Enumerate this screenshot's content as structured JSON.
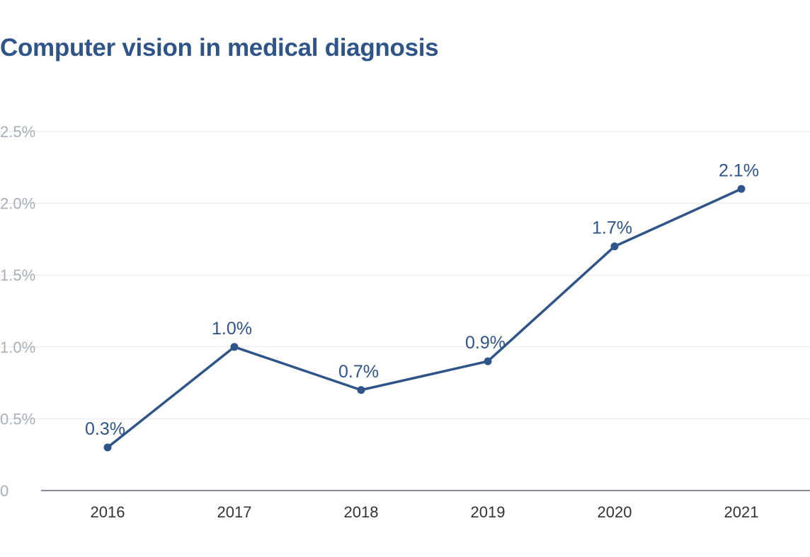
{
  "chart_data": {
    "type": "line",
    "title": "Computer vision in medical diagnosis",
    "categories": [
      "2016",
      "2017",
      "2018",
      "2019",
      "2020",
      "2021"
    ],
    "series": [
      {
        "values": [
          0.3,
          1.0,
          0.7,
          0.9,
          1.7,
          2.1
        ]
      }
    ],
    "data_labels": [
      "0.3%",
      "1.0%",
      "0.7%",
      "0.9%",
      "1.7%",
      "2.1%"
    ],
    "y_ticks": [
      0,
      0.5,
      1.0,
      1.5,
      2.0,
      2.5
    ],
    "y_tick_labels": [
      "0",
      "0.5%",
      "1.0%",
      "1.5%",
      "2.0%",
      "2.5%"
    ],
    "ylim": [
      0,
      2.5
    ],
    "grid": true,
    "xlabel": "",
    "ylabel": "",
    "colors": {
      "line": "#2f5488",
      "title": "#2f5488",
      "grid": "#e6e6e6",
      "ytick": "#a9afb8"
    }
  }
}
